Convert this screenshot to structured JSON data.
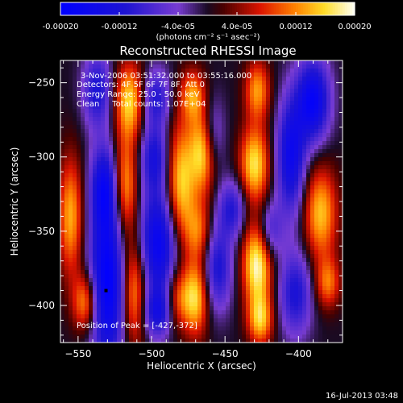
{
  "colorbar": {
    "ticks": [
      "-0.00020",
      "-0.00012",
      "-4.0e-05",
      "4.0e-05",
      "0.00012",
      "0.00020"
    ],
    "unit_label": "(photons cm⁻² s⁻¹ asec⁻²)",
    "range": [
      -0.0002,
      0.0002
    ]
  },
  "chart_data": {
    "type": "heatmap",
    "title": "Reconstructed RHESSI Image",
    "xlabel": "Heliocentric X (arcsec)",
    "ylabel": "Heliocentric Y (arcsec)",
    "xlim": [
      -562,
      -370
    ],
    "ylim": [
      -425,
      -235
    ],
    "x_ticks": [
      -550,
      -500,
      -450,
      -400
    ],
    "y_ticks": [
      -250,
      -300,
      -350,
      -400
    ],
    "x_tick_labels": [
      "−550",
      "−500",
      "−450",
      "−400"
    ],
    "y_tick_labels": [
      "−250",
      "−300",
      "−350",
      "−400"
    ],
    "annotations": [
      "3-Nov-2006 03:51:32.000 to 03:55:16.000",
      "Detectors: 4F 5F 6F 7F 8F, Att 0",
      "Energy Range: 25.0 - 50.0 keV",
      "Clean     Total counts: 1.07E+04"
    ],
    "peak_label": "Position of Peak = [-427,-372]",
    "peak_position": [
      -427,
      -372
    ],
    "marker_position": [
      -531,
      -390
    ],
    "blobs": [
      {
        "x": -530,
        "y": -385,
        "v": -0.0002,
        "sx": 9,
        "sy": 40
      },
      {
        "x": -532,
        "y": -320,
        "v": -0.00014,
        "sx": 7,
        "sy": 20
      },
      {
        "x": -537,
        "y": -255,
        "v": -0.00012,
        "sx": 7,
        "sy": 18
      },
      {
        "x": -495,
        "y": -358,
        "v": -0.00018,
        "sx": 10,
        "sy": 26
      },
      {
        "x": -498,
        "y": -300,
        "v": -0.00012,
        "sx": 7,
        "sy": 16
      },
      {
        "x": -497,
        "y": -260,
        "v": -0.00011,
        "sx": 7,
        "sy": 14
      },
      {
        "x": -496,
        "y": -405,
        "v": -0.00012,
        "sx": 7,
        "sy": 12
      },
      {
        "x": -460,
        "y": -285,
        "v": -0.0001,
        "sx": 6,
        "sy": 18
      },
      {
        "x": -455,
        "y": -375,
        "v": -0.00012,
        "sx": 7,
        "sy": 20
      },
      {
        "x": -445,
        "y": -335,
        "v": -0.00011,
        "sx": 7,
        "sy": 14
      },
      {
        "x": -405,
        "y": -300,
        "v": -0.00016,
        "sx": 7,
        "sy": 28
      },
      {
        "x": -390,
        "y": -262,
        "v": -0.00018,
        "sx": 8,
        "sy": 20
      },
      {
        "x": -402,
        "y": -392,
        "v": -0.00012,
        "sx": 8,
        "sy": 20
      },
      {
        "x": -420,
        "y": -350,
        "v": -0.0001,
        "sx": 6,
        "sy": 14
      },
      {
        "x": -555,
        "y": -340,
        "v": 0.00014,
        "sx": 6,
        "sy": 28
      },
      {
        "x": -545,
        "y": -398,
        "v": 0.00014,
        "sx": 6,
        "sy": 14
      },
      {
        "x": -515,
        "y": -262,
        "v": 0.00016,
        "sx": 7,
        "sy": 18
      },
      {
        "x": -518,
        "y": -320,
        "v": 0.00015,
        "sx": 6,
        "sy": 24
      },
      {
        "x": -512,
        "y": -390,
        "v": 0.00015,
        "sx": 6,
        "sy": 26
      },
      {
        "x": -480,
        "y": -320,
        "v": 0.00017,
        "sx": 7,
        "sy": 30
      },
      {
        "x": -482,
        "y": -395,
        "v": 0.0001,
        "sx": 6,
        "sy": 14
      },
      {
        "x": -472,
        "y": -258,
        "v": 0.00012,
        "sx": 6,
        "sy": 12
      },
      {
        "x": -468,
        "y": -350,
        "v": 0.0001,
        "sx": 6,
        "sy": 14
      },
      {
        "x": -465,
        "y": -295,
        "v": 0.00019,
        "sx": 6,
        "sy": 20
      },
      {
        "x": -470,
        "y": -395,
        "v": 0.00016,
        "sx": 6,
        "sy": 18
      },
      {
        "x": -428,
        "y": -372,
        "v": 0.0002,
        "sx": 7,
        "sy": 20
      },
      {
        "x": -430,
        "y": -305,
        "v": 0.00017,
        "sx": 7,
        "sy": 18
      },
      {
        "x": -428,
        "y": -255,
        "v": 0.00013,
        "sx": 6,
        "sy": 14
      },
      {
        "x": -426,
        "y": -410,
        "v": 0.00014,
        "sx": 6,
        "sy": 12
      },
      {
        "x": -385,
        "y": -338,
        "v": 0.00015,
        "sx": 8,
        "sy": 22
      },
      {
        "x": -380,
        "y": -385,
        "v": 0.00011,
        "sx": 6,
        "sy": 12
      }
    ]
  },
  "footer": {
    "timestamp": "16-Jul-2013 03:48"
  }
}
